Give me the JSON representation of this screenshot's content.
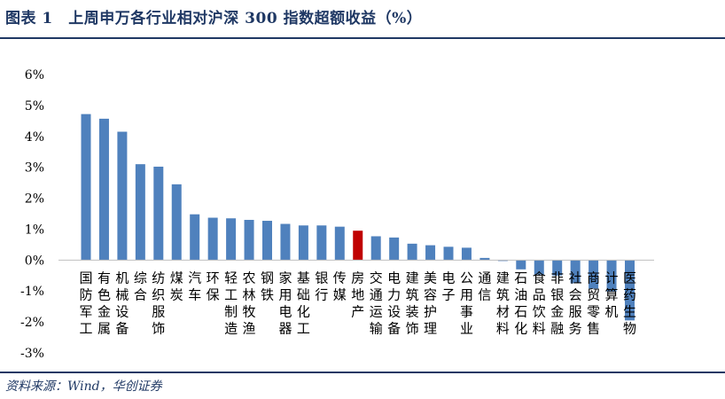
{
  "title": "图表 1　上周申万各行业相对沪深 300 指数超额收益（%）",
  "source": "资料来源：Wind，华创证券",
  "colors": {
    "bar": "#4f81bd",
    "highlight": "#c00000",
    "text": "#1f3864",
    "axis": "#bfbfbf"
  },
  "chart_data": {
    "type": "bar",
    "title": "",
    "xlabel": "",
    "ylabel": "",
    "ylim": [
      -3,
      6
    ],
    "yticks": [
      "-3%",
      "-2%",
      "-1%",
      "0%",
      "1%",
      "2%",
      "3%",
      "4%",
      "5%",
      "6%"
    ],
    "highlight_index": 15,
    "categories": [
      "国防军工",
      "有色金属",
      "机械设备",
      "综合",
      "纺织服饰",
      "煤炭",
      "汽车",
      "环保",
      "轻工制造",
      "农林牧渔",
      "钢铁",
      "家用电器",
      "基础化工",
      "银行",
      "传媒",
      "房地产",
      "交通运输",
      "电力设备",
      "建筑装饰",
      "美容护理",
      "电子",
      "公用事业",
      "通信",
      "建筑材料",
      "石油石化",
      "食品饮料",
      "非银金融",
      "社会服务",
      "商贸零售",
      "计算机",
      "医药生物"
    ],
    "values": [
      4.72,
      4.57,
      4.15,
      3.1,
      3.02,
      2.45,
      1.48,
      1.37,
      1.35,
      1.3,
      1.27,
      1.17,
      1.12,
      1.12,
      1.08,
      0.95,
      0.77,
      0.73,
      0.53,
      0.48,
      0.43,
      0.4,
      0.07,
      -0.03,
      -0.3,
      -0.47,
      -0.5,
      -0.75,
      -0.92,
      -1.02,
      -1.95
    ]
  }
}
